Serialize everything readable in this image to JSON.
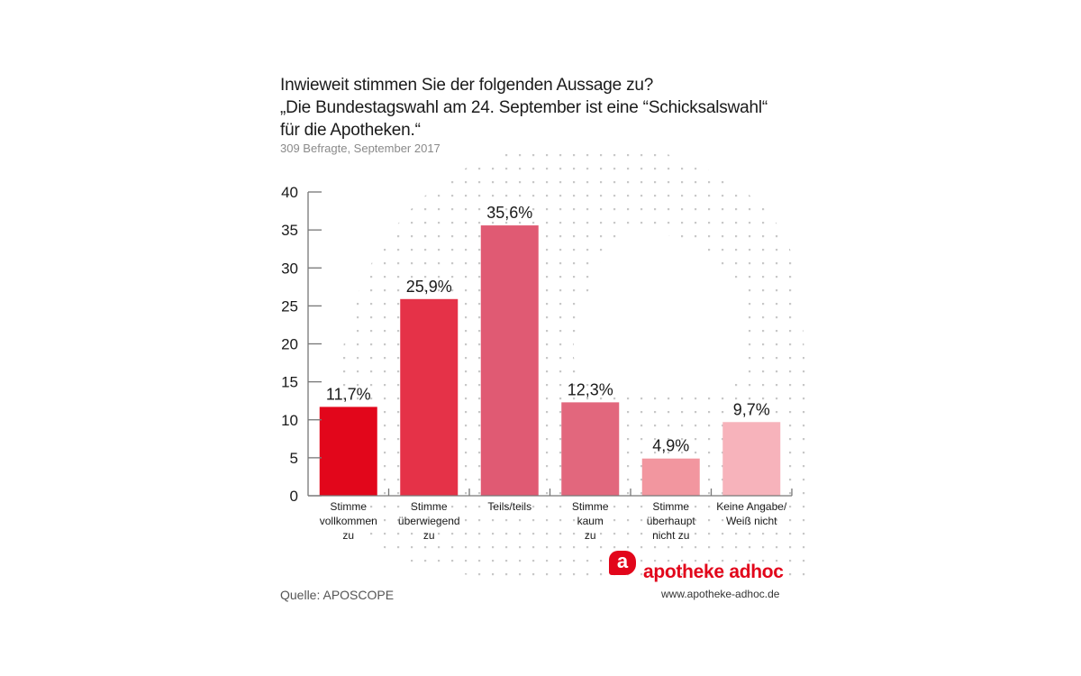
{
  "header": {
    "title_lines": [
      "Inwieweit stimmen Sie der folgenden Aussage zu?",
      "„Die Bundestagswahl am 24. September ist eine “Schicksalswahl“",
      "für die Apotheken.“"
    ],
    "subtitle": "309 Befragte, September 2017"
  },
  "footer": {
    "source": "Quelle: APOSCOPE",
    "brand_name": "apotheke adhoc",
    "brand_url": "www.apotheke-adhoc.de",
    "brand_icon": "a",
    "brand_color": "#e2061b"
  },
  "chart_data": {
    "type": "bar",
    "title": "Inwieweit stimmen Sie der folgenden Aussage zu? „Die Bundestagswahl am 24. September ist eine “Schicksalswahl“ für die Apotheken.“",
    "subtitle": "309 Befragte, September 2017",
    "xlabel": "",
    "ylabel": "",
    "ylim": [
      0,
      40
    ],
    "yticks": [
      0,
      5,
      10,
      15,
      20,
      25,
      30,
      35,
      40
    ],
    "grid": false,
    "legend": "none",
    "categories": [
      [
        "Stimme",
        "vollkommen",
        "zu"
      ],
      [
        "Stimme",
        "überwiegend",
        "zu"
      ],
      [
        "Teils/teils"
      ],
      [
        "Stimme",
        "kaum",
        "zu"
      ],
      [
        "Stimme",
        "überhaupt",
        "nicht zu"
      ],
      [
        "Keine Angabe/",
        "Weiß nicht"
      ]
    ],
    "values": [
      11.7,
      25.9,
      35.6,
      12.3,
      4.9,
      9.7
    ],
    "data_labels": [
      "11,7%",
      "25,9%",
      "35,6%",
      "12,3%",
      "4,9%",
      "9,7%"
    ],
    "colors": [
      "#e2061b",
      "#e53248",
      "#e05a73",
      "#e2677d",
      "#f2969f",
      "#f7b3bb"
    ]
  }
}
